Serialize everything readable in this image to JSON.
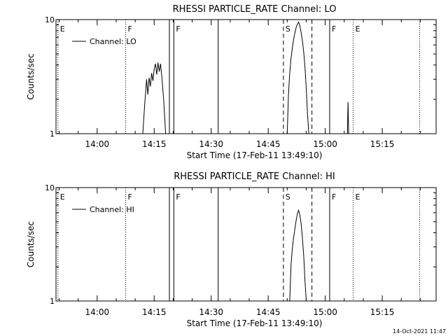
{
  "chart_data": [
    {
      "type": "line",
      "title": "RHESSI PARTICLE_RATE Channel: LO",
      "xlabel": "Start Time (17-Feb-11 13:49:10)",
      "ylabel": "Counts/sec",
      "y_scale": "log",
      "ylim": [
        1,
        10
      ],
      "y_ticks": [
        {
          "value": 1,
          "label": "1"
        },
        {
          "value": 10,
          "label": "10"
        }
      ],
      "xlim": [
        "13:49:10",
        "15:29:10"
      ],
      "x_ticks": [
        "14:00",
        "14:15",
        "14:30",
        "14:45",
        "15:00",
        "15:15"
      ],
      "x_tick_values": [
        "14:00",
        "14:15",
        "14:30",
        "14:45",
        "15:00",
        "15:15"
      ],
      "legend": {
        "label": "Channel: LO",
        "placement": "top-left"
      },
      "series": [
        {
          "name": "Channel: LO",
          "segments": [
            [
              [
                "14:12:00",
                1.0
              ],
              [
                "14:12:30",
                1.8
              ],
              [
                "14:13:00",
                3.0
              ],
              [
                "14:13:20",
                2.2
              ],
              [
                "14:13:40",
                3.1
              ],
              [
                "14:14:00",
                2.6
              ],
              [
                "14:14:20",
                3.4
              ],
              [
                "14:14:40",
                2.9
              ],
              [
                "14:15:00",
                3.7
              ],
              [
                "14:15:20",
                4.1
              ],
              [
                "14:15:40",
                3.3
              ],
              [
                "14:16:00",
                4.2
              ],
              [
                "14:16:20",
                3.5
              ],
              [
                "14:16:40",
                4.1
              ],
              [
                "14:17:00",
                3.2
              ],
              [
                "14:17:30",
                2.0
              ],
              [
                "14:18:00",
                1.0
              ]
            ],
            [
              [
                "14:50:00",
                1.0
              ],
              [
                "14:50:20",
                2.2
              ],
              [
                "14:50:40",
                3.4
              ],
              [
                "14:51:00",
                4.6
              ],
              [
                "14:51:20",
                5.6
              ],
              [
                "14:51:40",
                6.7
              ],
              [
                "14:52:00",
                7.6
              ],
              [
                "14:52:20",
                8.5
              ],
              [
                "14:52:40",
                9.1
              ],
              [
                "14:53:00",
                9.5
              ],
              [
                "14:53:20",
                8.8
              ],
              [
                "14:53:40",
                7.7
              ],
              [
                "14:54:00",
                6.5
              ],
              [
                "14:54:20",
                5.2
              ],
              [
                "14:54:40",
                3.8
              ],
              [
                "14:55:00",
                2.5
              ],
              [
                "14:55:20",
                1.5
              ],
              [
                "14:55:40",
                1.0
              ]
            ],
            [
              [
                "15:05:50",
                1.0
              ],
              [
                "15:06:00",
                1.9
              ],
              [
                "15:06:10",
                1.0
              ]
            ]
          ]
        }
      ],
      "markers": [
        {
          "time": "13:49:40",
          "label": "E",
          "style": "dotted"
        },
        {
          "time": "14:07:30",
          "label": "F",
          "style": "dotted"
        },
        {
          "time": "14:19:00",
          "label": "",
          "style": "solid"
        },
        {
          "time": "14:20:10",
          "label": "F",
          "style": "solid"
        },
        {
          "time": "14:31:50",
          "label": "",
          "style": "solid"
        },
        {
          "time": "14:49:00",
          "label": "S",
          "style": "dashed"
        },
        {
          "time": "14:56:30",
          "label": "",
          "style": "dashed"
        },
        {
          "time": "15:01:10",
          "label": "F",
          "style": "solid"
        },
        {
          "time": "15:07:20",
          "label": "E",
          "style": "dotted"
        },
        {
          "time": "15:24:50",
          "label": "",
          "style": "dotted"
        }
      ]
    },
    {
      "type": "line",
      "title": "RHESSI PARTICLE_RATE Channel: HI",
      "xlabel": "Start Time (17-Feb-11 13:49:10)",
      "ylabel": "Counts/sec",
      "y_scale": "log",
      "ylim": [
        1,
        10
      ],
      "y_ticks": [
        {
          "value": 1,
          "label": "1"
        },
        {
          "value": 10,
          "label": "10"
        }
      ],
      "xlim": [
        "13:49:10",
        "15:29:10"
      ],
      "x_ticks": [
        "14:00",
        "14:15",
        "14:30",
        "14:45",
        "15:00",
        "15:15"
      ],
      "x_tick_values": [
        "14:00",
        "14:15",
        "14:30",
        "14:45",
        "15:00",
        "15:15"
      ],
      "legend": {
        "label": "Channel: HI",
        "placement": "top-left"
      },
      "series": [
        {
          "name": "Channel: HI",
          "segments": [
            [
              [
                "14:50:40",
                1.0
              ],
              [
                "14:51:00",
                2.1
              ],
              [
                "14:51:20",
                2.9
              ],
              [
                "14:51:40",
                3.6
              ],
              [
                "14:52:00",
                4.3
              ],
              [
                "14:52:20",
                5.1
              ],
              [
                "14:52:40",
                5.9
              ],
              [
                "14:53:00",
                6.3
              ],
              [
                "14:53:20",
                5.7
              ],
              [
                "14:53:40",
                4.8
              ],
              [
                "14:54:00",
                3.6
              ],
              [
                "14:54:20",
                2.5
              ],
              [
                "14:54:40",
                1.5
              ],
              [
                "14:55:00",
                1.0
              ]
            ]
          ]
        }
      ],
      "markers": [
        {
          "time": "13:49:40",
          "label": "E",
          "style": "dotted"
        },
        {
          "time": "14:07:30",
          "label": "F",
          "style": "dotted"
        },
        {
          "time": "14:19:00",
          "label": "",
          "style": "solid"
        },
        {
          "time": "14:20:10",
          "label": "F",
          "style": "solid"
        },
        {
          "time": "14:31:50",
          "label": "",
          "style": "solid"
        },
        {
          "time": "14:49:00",
          "label": "S",
          "style": "dashed"
        },
        {
          "time": "14:56:30",
          "label": "",
          "style": "dashed"
        },
        {
          "time": "15:01:10",
          "label": "F",
          "style": "solid"
        },
        {
          "time": "15:07:20",
          "label": "E",
          "style": "dotted"
        },
        {
          "time": "15:24:50",
          "label": "",
          "style": "dotted"
        }
      ]
    }
  ],
  "footer": {
    "timestamp": "14-Oct-2021 11:47"
  }
}
